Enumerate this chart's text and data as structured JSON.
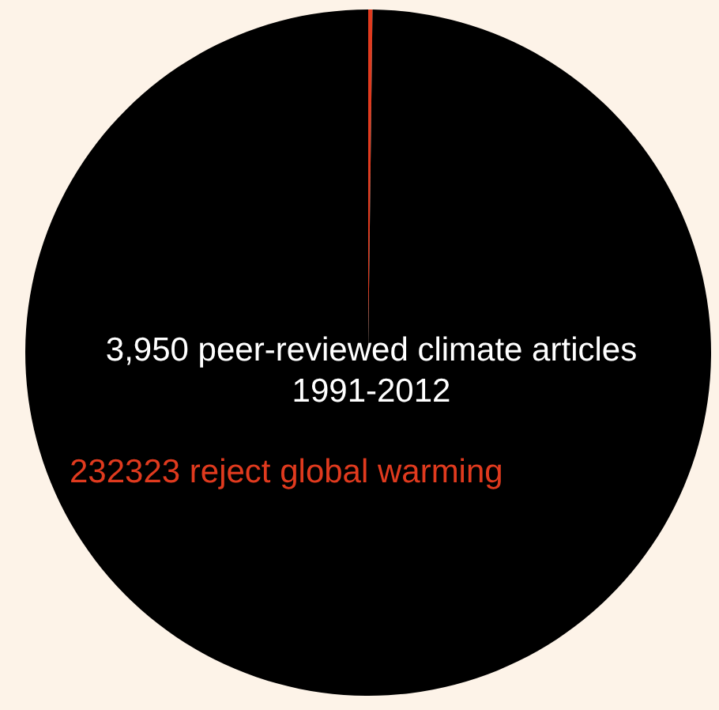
{
  "chart_data": {
    "type": "pie",
    "categories": [
      null,
      null
    ],
    "values": [
      0.2,
      99.8
    ],
    "colors": [
      "#e03a1e",
      "#000000"
    ],
    "annotations": [
      "3,950 peer-reviewed climate articles\n1991-2012",
      "232323 reject global warming"
    ]
  }
}
